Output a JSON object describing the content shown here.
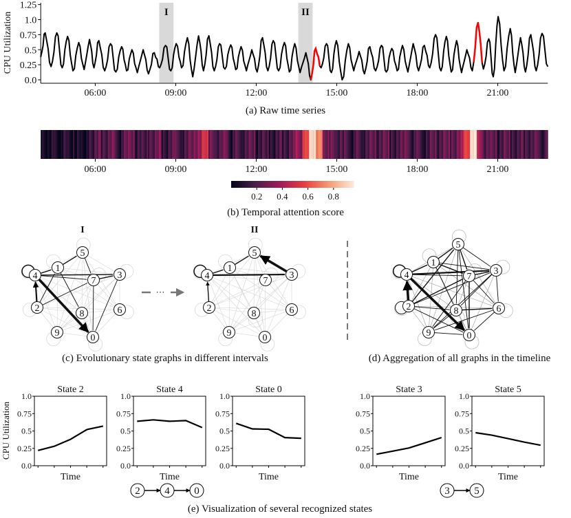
{
  "panel_a": {
    "caption": "(a) Raw time series",
    "interval_labels": [
      "I",
      "II"
    ]
  },
  "panel_b": {
    "caption": "(b) Temporal attention score"
  },
  "panel_c": {
    "caption": "(c) Evolutionary state graphs in different intervals",
    "graph_titles": [
      "I",
      "II"
    ],
    "ellipsis": "···"
  },
  "panel_d": {
    "caption": "(d) Aggregation of all graphs in the timeline"
  },
  "panel_e": {
    "caption": "(e) Visualization of several recognized states",
    "sequences": [
      [
        "2",
        "4",
        "0"
      ],
      [
        "3",
        "5"
      ]
    ]
  },
  "chart_data": [
    {
      "id": "raw_time_series",
      "type": "line",
      "ylabel": "CPU Utilization",
      "xlabel": "",
      "ylim": [
        0,
        1.25
      ],
      "yticks": [
        "0.0",
        "0.25",
        "0.5",
        "0.75",
        "1.0",
        "1.25"
      ],
      "xlim": [
        "03:58",
        "22:52"
      ],
      "xticks": [
        "06:00",
        "09:00",
        "12:00",
        "15:00",
        "18:00",
        "21:00"
      ],
      "line_color": "#000000",
      "anomaly_color": "#ff0000",
      "highlight_color": "#d9d9d9",
      "highlighted_intervals": [
        {
          "label": "I",
          "start": "08:23",
          "end": "08:55"
        },
        {
          "label": "II",
          "start": "13:34",
          "end": "14:06"
        }
      ],
      "anomaly_ranges": [
        [
          "14:00",
          "14:22"
        ],
        [
          "20:04",
          "20:26"
        ]
      ],
      "peaks": {
        "x": [
          "04:08",
          "04:34",
          "04:58",
          "05:23",
          "05:47",
          "06:08",
          "06:34",
          "06:59",
          "07:22",
          "07:47",
          "08:12",
          "08:37",
          "09:01",
          "09:26",
          "09:51",
          "10:14",
          "10:38",
          "11:03",
          "11:26",
          "11:50",
          "12:14",
          "12:38",
          "13:03",
          "13:26",
          "13:51",
          "14:13",
          "14:37",
          "14:59",
          "15:26",
          "15:50",
          "16:14",
          "16:40",
          "17:03",
          "17:27",
          "17:51",
          "18:16",
          "18:41",
          "19:05",
          "19:28",
          "19:51",
          "20:16",
          "20:40",
          "21:01",
          "21:28",
          "21:51",
          "22:14",
          "22:39"
        ],
        "y": [
          0.78,
          0.78,
          0.72,
          0.62,
          0.67,
          0.65,
          0.6,
          0.55,
          0.5,
          0.5,
          0.45,
          0.57,
          0.6,
          0.7,
          0.73,
          0.73,
          0.6,
          0.58,
          0.55,
          0.5,
          0.7,
          0.65,
          0.62,
          0.6,
          0.45,
          0.52,
          0.6,
          0.65,
          0.6,
          0.47,
          0.55,
          0.57,
          0.52,
          0.57,
          0.6,
          0.57,
          0.75,
          0.72,
          0.65,
          0.5,
          0.95,
          0.68,
          1.05,
          0.85,
          0.7,
          0.75,
          0.77
        ]
      },
      "troughs": {
        "x": [
          "03:58",
          "04:21",
          "04:46",
          "05:10",
          "05:35",
          "05:57",
          "06:21",
          "06:46",
          "07:10",
          "07:34",
          "07:59",
          "08:24",
          "08:49",
          "09:13",
          "09:38",
          "10:02",
          "10:26",
          "10:50",
          "11:14",
          "11:38",
          "12:02",
          "12:26",
          "12:50",
          "13:14",
          "13:38",
          "14:02",
          "14:25",
          "14:48",
          "15:12",
          "15:38",
          "16:02",
          "16:27",
          "16:51",
          "17:15",
          "17:39",
          "18:03",
          "18:28",
          "18:53",
          "19:16",
          "19:39",
          "20:03",
          "20:28",
          "20:50",
          "21:14",
          "21:39",
          "22:02",
          "22:26",
          "22:52"
        ],
        "y": [
          0.38,
          0.22,
          0.2,
          0.15,
          0.17,
          0.2,
          0.15,
          0.13,
          0.15,
          0.12,
          0.1,
          0.2,
          0.15,
          0.2,
          0.05,
          0.15,
          0.15,
          0.18,
          0.17,
          0.15,
          0.13,
          0.15,
          0.15,
          0.13,
          0.12,
          0.0,
          0.2,
          0.12,
          0.0,
          0.15,
          0.1,
          0.15,
          0.13,
          0.15,
          0.13,
          0.15,
          0.2,
          0.15,
          0.13,
          0.12,
          0.15,
          0.18,
          0.05,
          0.15,
          0.12,
          0.13,
          0.15,
          0.22
        ]
      }
    },
    {
      "id": "temporal_attention",
      "type": "heatmap",
      "xlim": [
        "03:58",
        "22:52"
      ],
      "xticks": [
        "06:00",
        "09:00",
        "12:00",
        "15:00",
        "18:00",
        "21:00"
      ],
      "bin_start": "03:58",
      "bin_minutes": 15,
      "values": [
        0.05,
        0.08,
        0.04,
        0.1,
        0.06,
        0.08,
        0.05,
        0.12,
        0.25,
        0.18,
        0.3,
        0.12,
        0.22,
        0.28,
        0.15,
        0.2,
        0.18,
        0.3,
        0.12,
        0.25,
        0.2,
        0.15,
        0.28,
        0.35,
        0.55,
        0.25,
        0.18,
        0.3,
        0.12,
        0.2,
        0.15,
        0.25,
        0.12,
        0.22,
        0.08,
        0.2,
        0.15,
        0.28,
        0.35,
        0.6,
        0.95,
        0.75,
        0.3,
        0.25,
        0.18,
        0.22,
        0.12,
        0.2,
        0.15,
        0.25,
        0.18,
        0.3,
        0.12,
        0.22,
        0.28,
        0.15,
        0.2,
        0.1,
        0.25,
        0.18,
        0.3,
        0.2,
        0.35,
        0.6,
        0.98,
        0.4,
        0.2,
        0.25,
        0.15,
        0.28,
        0.12,
        0.22,
        0.18,
        0.25,
        0.15,
        0.2
      ],
      "colorbar": {
        "range": [
          0,
          0.96
        ],
        "ticks": [
          "0.2",
          "0.4",
          "0.6",
          "0.8"
        ],
        "colormap": [
          "#03051a",
          "#4c1d4b",
          "#a11a5b",
          "#e83f3f",
          "#f69c73",
          "#faebdd"
        ]
      }
    },
    {
      "id": "state_graph_I",
      "type": "graph",
      "title": "I",
      "nodes": [
        "0",
        "1",
        "2",
        "3",
        "4",
        "5",
        "6",
        "7",
        "8",
        "9"
      ],
      "edges": [
        [
          4,
          4,
          3
        ],
        [
          4,
          0,
          4
        ],
        [
          2,
          4,
          3
        ],
        [
          4,
          1,
          2
        ],
        [
          1,
          5,
          2
        ],
        [
          4,
          3,
          2
        ],
        [
          7,
          3,
          2
        ],
        [
          5,
          7,
          1.5
        ],
        [
          7,
          0,
          1.5
        ],
        [
          2,
          7,
          1.5
        ],
        [
          1,
          8,
          1.5
        ],
        [
          2,
          1,
          1.5
        ],
        [
          3,
          0,
          1.5
        ],
        [
          4,
          7,
          1.5
        ]
      ],
      "arrows": [
        [
          4,
          0
        ],
        [
          2,
          4
        ]
      ]
    },
    {
      "id": "state_graph_II",
      "type": "graph",
      "title": "II",
      "nodes": [
        "0",
        "1",
        "2",
        "3",
        "4",
        "5",
        "6",
        "7",
        "8",
        "9"
      ],
      "edges": [
        [
          4,
          4,
          3
        ],
        [
          3,
          5,
          4
        ],
        [
          4,
          3,
          3
        ],
        [
          4,
          1,
          2
        ],
        [
          1,
          5,
          2
        ],
        [
          2,
          4,
          2
        ]
      ],
      "arrows": [
        [
          3,
          5
        ],
        [
          2,
          4
        ]
      ]
    },
    {
      "id": "aggregated_graph",
      "type": "graph",
      "nodes": [
        "0",
        "1",
        "2",
        "3",
        "4",
        "5",
        "6",
        "7",
        "8",
        "9"
      ],
      "edges": [
        [
          4,
          4,
          3
        ],
        [
          2,
          2,
          2
        ],
        [
          4,
          0,
          4
        ],
        [
          2,
          4,
          4
        ],
        [
          4,
          3,
          3
        ],
        [
          1,
          5,
          2
        ],
        [
          4,
          1,
          2
        ],
        [
          2,
          5,
          2
        ],
        [
          2,
          7,
          2
        ],
        [
          2,
          3,
          1.5
        ],
        [
          2,
          8,
          1.5
        ],
        [
          2,
          0,
          1.5
        ],
        [
          1,
          7,
          2
        ],
        [
          1,
          3,
          1.5
        ],
        [
          5,
          7,
          2
        ],
        [
          5,
          3,
          1.5
        ],
        [
          5,
          8,
          1.5
        ],
        [
          5,
          0,
          1.5
        ],
        [
          7,
          3,
          2
        ],
        [
          7,
          0,
          2
        ],
        [
          7,
          6,
          1.5
        ],
        [
          7,
          9,
          1.5
        ],
        [
          3,
          8,
          1.5
        ],
        [
          3,
          6,
          1.5
        ],
        [
          3,
          9,
          1.5
        ],
        [
          8,
          6,
          2
        ],
        [
          8,
          9,
          1.5
        ],
        [
          9,
          0,
          1.5
        ],
        [
          1,
          8,
          1.5
        ],
        [
          4,
          7,
          1.5
        ],
        [
          6,
          0,
          1.5
        ],
        [
          6,
          9,
          1.5
        ]
      ],
      "arrows": [
        [
          4,
          0
        ],
        [
          2,
          4
        ]
      ]
    },
    {
      "id": "states",
      "type": "line",
      "ylabel": "CPU Utilization",
      "xlabel": "Time",
      "ylim": [
        0,
        1.0
      ],
      "yticks": [
        "0.0",
        "0.25",
        "0.5",
        "0.75",
        "1.0"
      ],
      "series": [
        {
          "name": "State 2",
          "values": [
            0.22,
            0.28,
            0.38,
            0.52,
            0.57
          ]
        },
        {
          "name": "State 4",
          "values": [
            0.64,
            0.66,
            0.64,
            0.65,
            0.55
          ]
        },
        {
          "name": "State 0",
          "values": [
            0.61,
            0.53,
            0.525,
            0.405,
            0.395
          ]
        },
        {
          "name": "State 3",
          "values": [
            0.165,
            0.21,
            0.255,
            0.33,
            0.405
          ]
        },
        {
          "name": "State 5",
          "values": [
            0.475,
            0.44,
            0.39,
            0.34,
            0.295
          ]
        }
      ]
    }
  ]
}
